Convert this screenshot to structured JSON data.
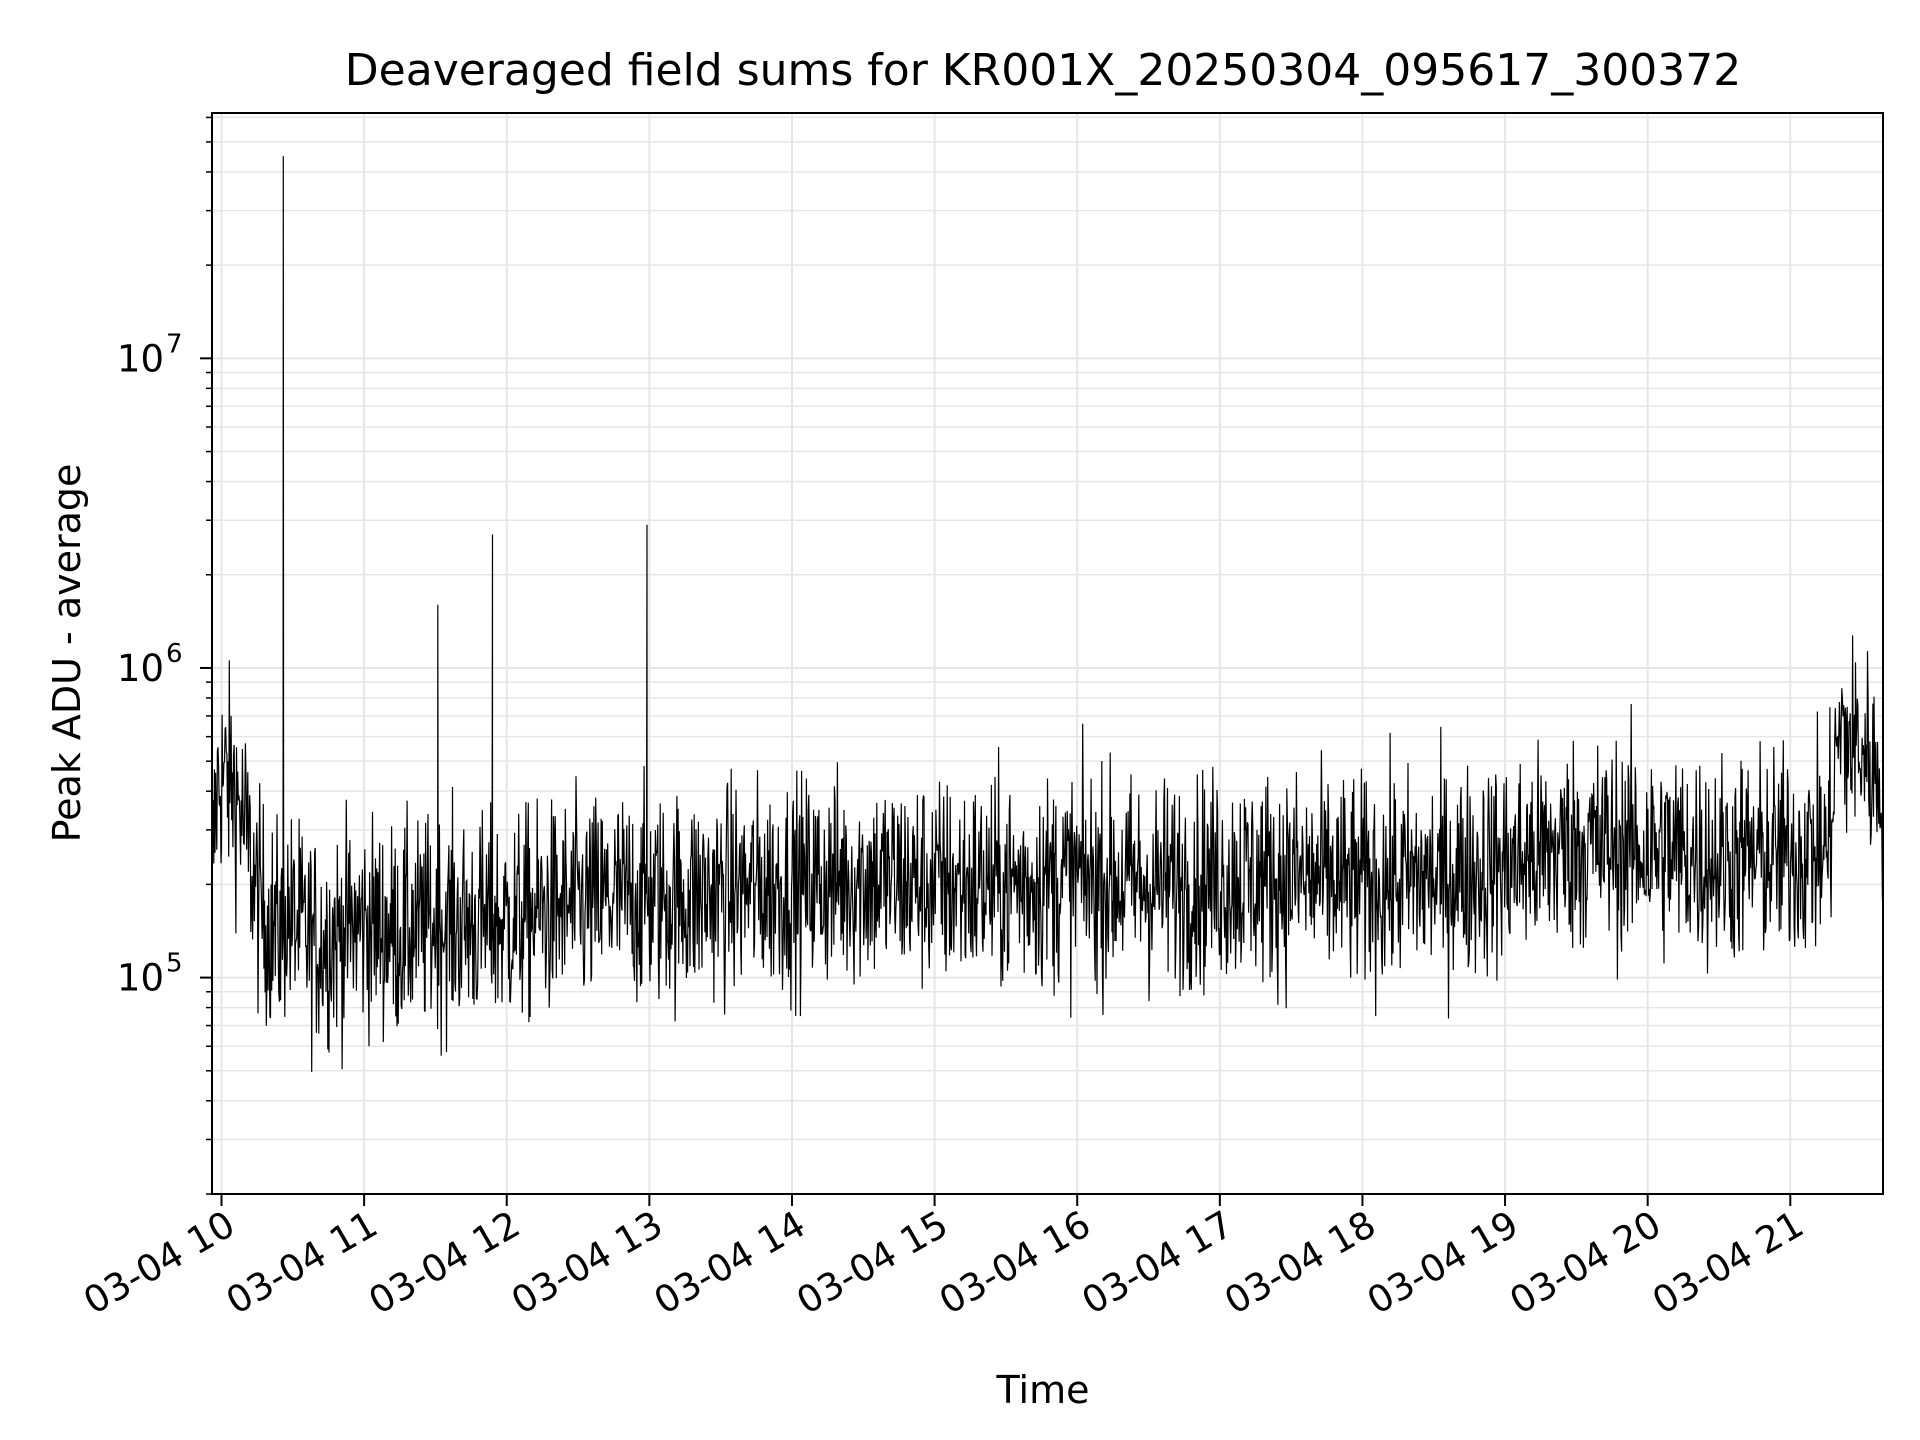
{
  "chart_data": {
    "type": "line",
    "title": "Deaveraged field sums for KR001X_20250304_095617_300372",
    "xlabel": "Time",
    "ylabel": "Peak ADU - average",
    "y_scale": "log",
    "ylim": [
      20000,
      62000000
    ],
    "xlim": [
      "2025-03-04 09:56",
      "2025-03-04 21:39"
    ],
    "grid": true,
    "grid_minor": true,
    "line_color": "#000000",
    "grid_color": "#e6e6e6",
    "x_ticks": [
      {
        "t": "2025-03-04 10:00",
        "label": "03-04 10"
      },
      {
        "t": "2025-03-04 11:00",
        "label": "03-04 11"
      },
      {
        "t": "2025-03-04 12:00",
        "label": "03-04 12"
      },
      {
        "t": "2025-03-04 13:00",
        "label": "03-04 13"
      },
      {
        "t": "2025-03-04 14:00",
        "label": "03-04 14"
      },
      {
        "t": "2025-03-04 15:00",
        "label": "03-04 15"
      },
      {
        "t": "2025-03-04 16:00",
        "label": "03-04 16"
      },
      {
        "t": "2025-03-04 17:00",
        "label": "03-04 17"
      },
      {
        "t": "2025-03-04 18:00",
        "label": "03-04 18"
      },
      {
        "t": "2025-03-04 19:00",
        "label": "03-04 19"
      },
      {
        "t": "2025-03-04 20:00",
        "label": "03-04 20"
      },
      {
        "t": "2025-03-04 21:00",
        "label": "03-04 21"
      }
    ],
    "y_ticks": [
      {
        "value": 100000,
        "base": "10",
        "exp": "5"
      },
      {
        "value": 1000000,
        "base": "10",
        "exp": "6"
      },
      {
        "value": 10000000,
        "base": "10",
        "exp": "7"
      }
    ],
    "series": [
      {
        "x": [
          "2025-03-04 09:56",
          "2025-03-04 09:58",
          "2025-03-04 10:00",
          "2025-03-04 10:05",
          "2025-03-04 10:10",
          "2025-03-04 10:15",
          "2025-03-04 10:20",
          "2025-03-04 10:25",
          "2025-03-04 10:26",
          "2025-03-04 10:28",
          "2025-03-04 10:30",
          "2025-03-04 10:40",
          "2025-03-04 10:50",
          "2025-03-04 11:00",
          "2025-03-04 11:15",
          "2025-03-04 11:30",
          "2025-03-04 11:31",
          "2025-03-04 11:45",
          "2025-03-04 11:54",
          "2025-03-04 11:58",
          "2025-03-04 12:10",
          "2025-03-04 12:30",
          "2025-03-04 12:45",
          "2025-03-04 12:59",
          "2025-03-04 13:15",
          "2025-03-04 13:30",
          "2025-03-04 14:00",
          "2025-03-04 14:30",
          "2025-03-04 15:00",
          "2025-03-04 15:30",
          "2025-03-04 16:00",
          "2025-03-04 16:30",
          "2025-03-04 17:00",
          "2025-03-04 17:30",
          "2025-03-04 18:00",
          "2025-03-04 18:30",
          "2025-03-04 19:00",
          "2025-03-04 19:30",
          "2025-03-04 20:00",
          "2025-03-04 20:30",
          "2025-03-04 21:00",
          "2025-03-04 21:16",
          "2025-03-04 21:20",
          "2025-03-04 21:30",
          "2025-03-04 21:39"
        ],
        "y": [
          210000,
          400000,
          450000,
          420000,
          300000,
          180000,
          150000,
          140000,
          45000000,
          160000,
          150000,
          130000,
          140000,
          150000,
          140000,
          150000,
          1600000,
          150000,
          2700000,
          150000,
          160000,
          170000,
          180000,
          2900000,
          180000,
          190000,
          200000,
          210000,
          200000,
          200000,
          210000,
          200000,
          210000,
          210000,
          200000,
          210000,
          230000,
          270000,
          260000,
          240000,
          250000,
          260000,
          600000,
          550000,
          420000
        ]
      }
    ]
  }
}
